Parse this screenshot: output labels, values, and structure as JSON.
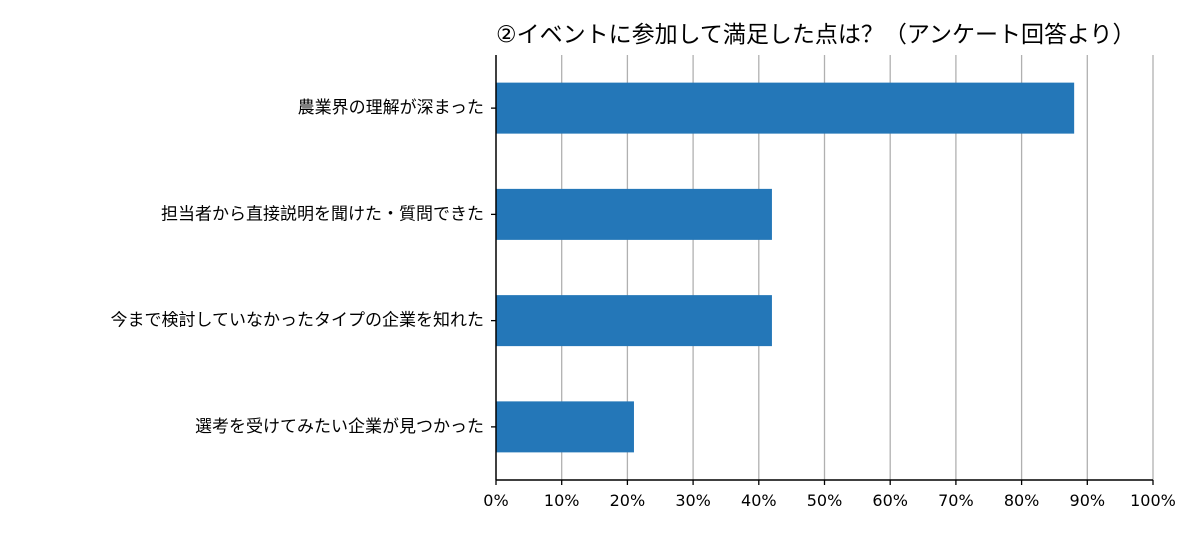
{
  "chart_data": {
    "type": "bar",
    "orientation": "horizontal",
    "title": "②イベントに参加して満足した点は？（アンケート回答より）",
    "categories": [
      "農業界の理解が深まった",
      "担当者から直接説明を聞けた・質問できた",
      "今まで検討していなかったタイプの企業を知れた",
      "選考を受けてみたい企業が見つかった"
    ],
    "values": [
      88,
      42,
      42,
      21
    ],
    "xlim": [
      0,
      100
    ],
    "xticks": [
      0,
      10,
      20,
      30,
      40,
      50,
      60,
      70,
      80,
      90,
      100
    ],
    "tick_suffix": "%",
    "xlabel": "",
    "ylabel": "",
    "grid": "vertical",
    "bar_color": "#2477b8",
    "grid_color": "#b0b0b0",
    "axis_color": "#000000"
  }
}
